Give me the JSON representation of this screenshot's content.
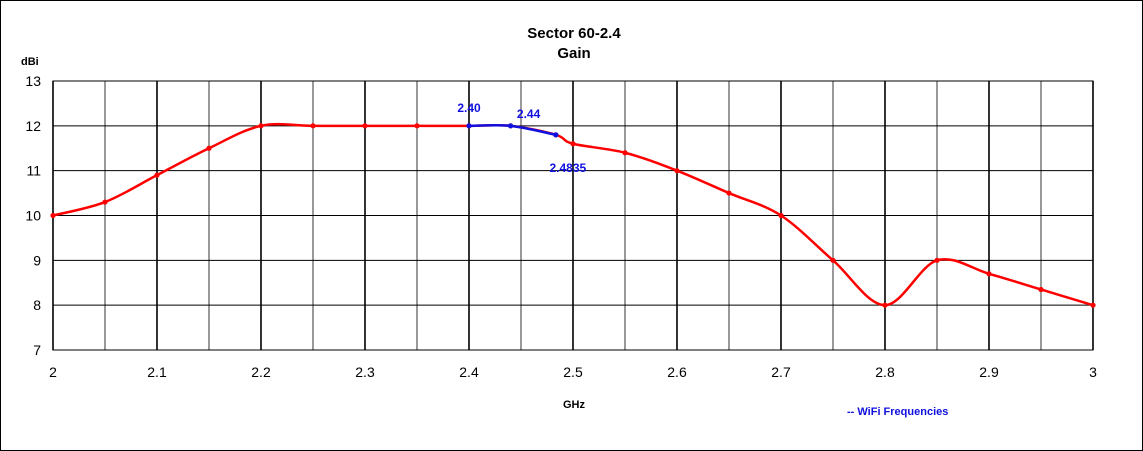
{
  "chart_data": {
    "type": "line",
    "title": "Sector 60-2.4",
    "subtitle": "Gain",
    "xlabel": "GHz",
    "ylabel": "dBi",
    "xlim": [
      2,
      3
    ],
    "ylim": [
      7,
      13
    ],
    "x_ticks": [
      "2",
      "2.1",
      "2.2",
      "2.3",
      "2.4",
      "2.5",
      "2.6",
      "2.7",
      "2.8",
      "2.9",
      "3"
    ],
    "y_ticks": [
      "7",
      "8",
      "9",
      "10",
      "11",
      "12",
      "13"
    ],
    "x_minor_step": 0.05,
    "grid": true,
    "series": [
      {
        "color": "#ff0000",
        "points": [
          [
            2.0,
            10.0
          ],
          [
            2.05,
            10.3
          ],
          [
            2.1,
            10.9
          ],
          [
            2.15,
            11.5
          ],
          [
            2.2,
            12.0
          ],
          [
            2.25,
            12.0
          ],
          [
            2.3,
            12.0
          ],
          [
            2.35,
            12.0
          ],
          [
            2.4,
            12.0
          ],
          [
            2.44,
            12.0
          ],
          [
            2.4835,
            11.8
          ],
          [
            2.5,
            11.6
          ],
          [
            2.55,
            11.4
          ],
          [
            2.6,
            11.0
          ],
          [
            2.65,
            10.5
          ],
          [
            2.7,
            10.0
          ],
          [
            2.75,
            9.0
          ],
          [
            2.8,
            8.0
          ],
          [
            2.85,
            9.0
          ],
          [
            2.9,
            8.7
          ],
          [
            2.95,
            8.35
          ],
          [
            3.0,
            8.0
          ]
        ]
      },
      {
        "name": "-- WiFi Frequencies",
        "color": "#1010e0",
        "points": [
          [
            2.4,
            12.0
          ],
          [
            2.44,
            12.0
          ],
          [
            2.4835,
            11.8
          ]
        ]
      }
    ],
    "annotations": [
      {
        "text": "2.40",
        "x": 2.4,
        "y": 12.0,
        "color": "#1010e0"
      },
      {
        "text": "2.44",
        "x": 2.44,
        "y": 12.0,
        "color": "#1010e0"
      },
      {
        "text": "2.4835",
        "x": 2.4835,
        "y": 11.8,
        "color": "#1010e0"
      }
    ],
    "legend": {
      "text": "-- WiFi Frequencies",
      "placement": "bottom-right",
      "color": "#1010e0"
    }
  }
}
